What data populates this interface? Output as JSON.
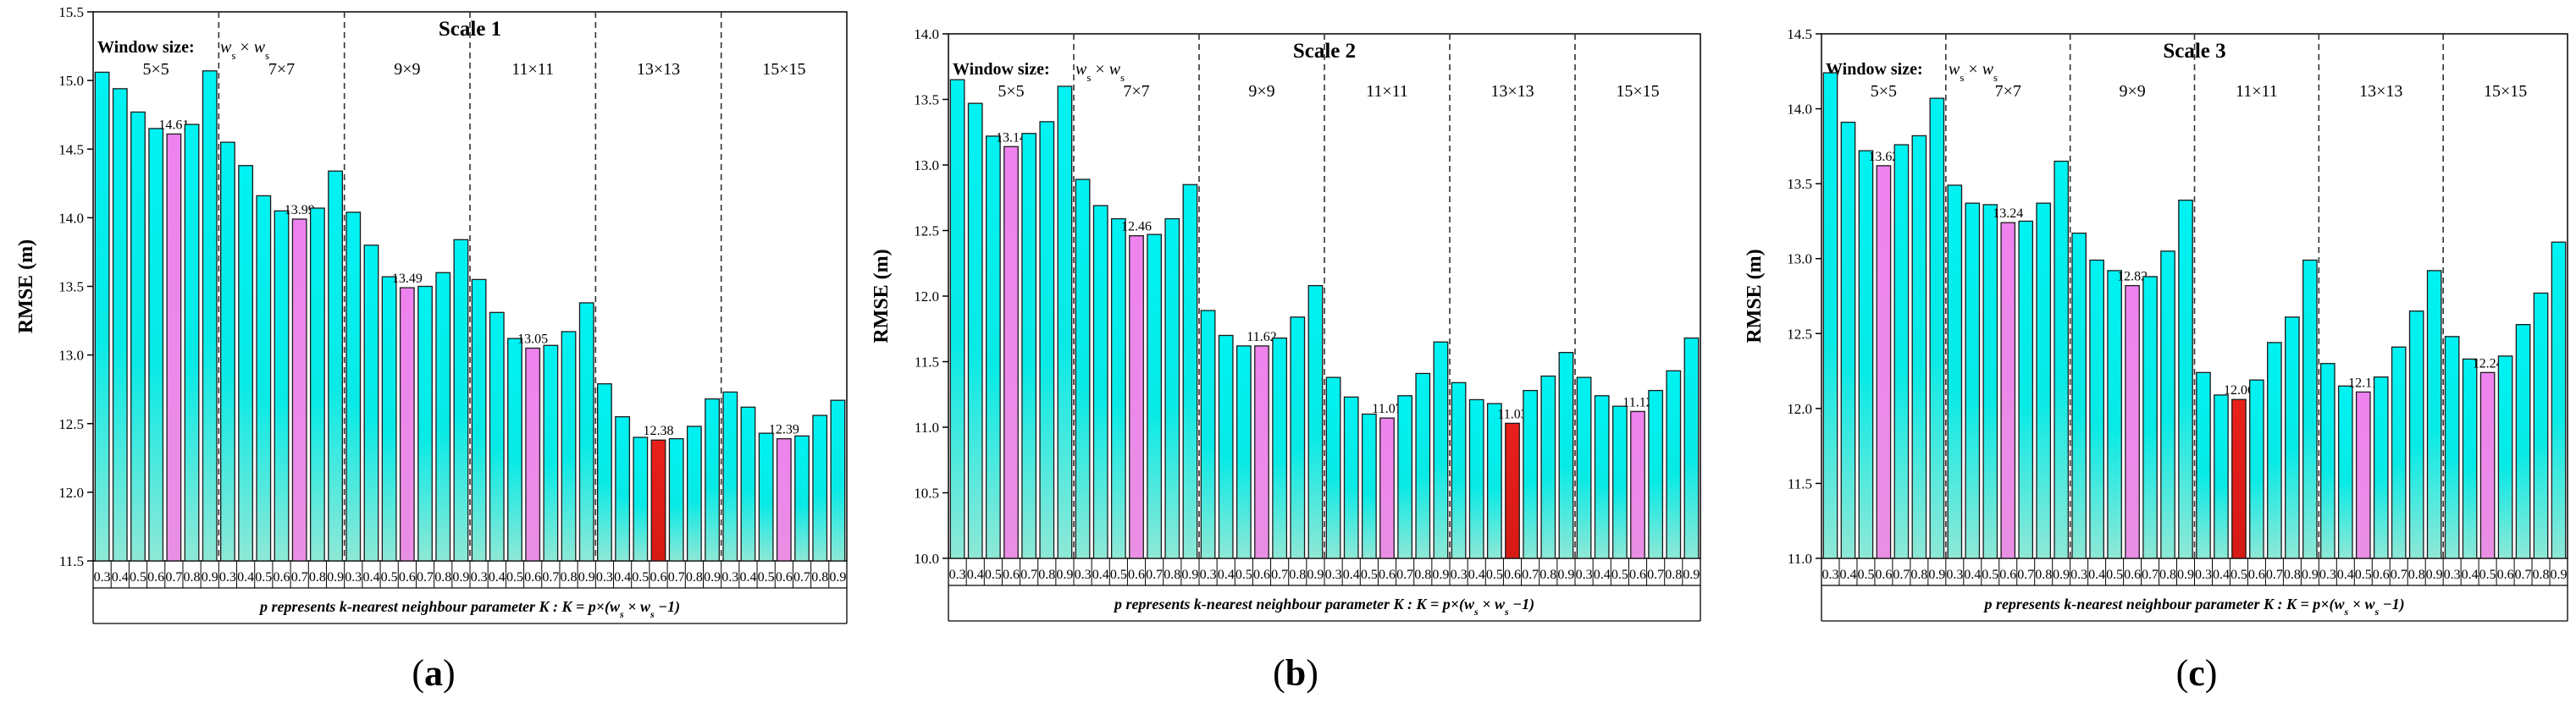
{
  "figure": {
    "colors": {
      "bar_normal": "#00F0F0",
      "bar_min_group": "#EE82EE",
      "bar_min_overall": "#E8201C",
      "bar_stroke": "#1a1a1a",
      "divider": "#333333",
      "text": "#000000"
    }
  },
  "chart_data": [
    {
      "type": "bar",
      "panel_label": "(a)",
      "title": "Scale 1",
      "ylabel": "RMSE (m)",
      "xlabel": "p represents k-nearest neighbour parameter K : K = p×(w_s × w_s − 1)",
      "xlabel_parts": [
        "p represents k-nearest neighbour parameter ",
        "K",
        " : ",
        "K",
        " = ",
        "p",
        "×(",
        "w",
        "s",
        " × ",
        "w",
        "s",
        " −1)"
      ],
      "window_label": "Window size:",
      "window_formula": [
        "w",
        "s",
        " × ",
        "w",
        "s"
      ],
      "ylim": [
        11.5,
        15.5
      ],
      "yticks": [
        "11.5",
        "12.0",
        "12.5",
        "13.0",
        "13.5",
        "14.0",
        "14.5",
        "15.0",
        "15.5"
      ],
      "yticks_values": [
        11.5,
        12.0,
        12.5,
        13.0,
        13.5,
        14.0,
        14.5,
        15.0,
        15.5
      ],
      "x_tick_labels": [
        "0.3",
        "0.4",
        "0.5",
        "0.6",
        "0.7",
        "0.8",
        "0.9"
      ],
      "groups": [
        {
          "label": "5×5",
          "values": [
            15.06,
            14.94,
            14.77,
            14.65,
            14.61,
            14.68,
            15.07
          ],
          "min_label": "14.61",
          "min_index": 4
        },
        {
          "label": "7×7",
          "values": [
            14.55,
            14.38,
            14.16,
            14.05,
            13.99,
            14.07,
            14.34
          ],
          "min_label": "13.99",
          "min_index": 4
        },
        {
          "label": "9×9",
          "values": [
            14.04,
            13.8,
            13.57,
            13.49,
            13.5,
            13.6,
            13.84
          ],
          "min_label": "13.49",
          "min_index": 3
        },
        {
          "label": "11×11",
          "values": [
            13.55,
            13.31,
            13.12,
            13.05,
            13.07,
            13.17,
            13.38
          ],
          "min_label": "13.05",
          "min_index": 3
        },
        {
          "label": "13×13",
          "values": [
            12.79,
            12.55,
            12.4,
            12.38,
            12.39,
            12.48,
            12.68
          ],
          "min_label": "12.38",
          "min_index": 3,
          "overall_min": true
        },
        {
          "label": "15×15",
          "values": [
            12.73,
            12.62,
            12.43,
            12.39,
            12.41,
            12.56,
            12.67
          ],
          "min_label": "12.39",
          "min_index": 3
        }
      ]
    },
    {
      "type": "bar",
      "panel_label": "(b)",
      "title": "Scale 2",
      "ylabel": "RMSE (m)",
      "xlabel": "p represents k-nearest neighbour parameter K : K = p×(w_s × w_s − 1)",
      "xlabel_parts": [
        "p represents k-nearest neighbour parameter ",
        "K",
        " : ",
        "K",
        " = ",
        "p",
        "×(",
        "w",
        "s",
        " × ",
        "w",
        "s",
        " −1)"
      ],
      "window_label": "Window size:",
      "window_formula": [
        "w",
        "s",
        " × ",
        "w",
        "s"
      ],
      "ylim": [
        10.0,
        14.0
      ],
      "yticks": [
        "10.0",
        "10.5",
        "11.0",
        "11.5",
        "12.0",
        "12.5",
        "13.0",
        "13.5",
        "14.0"
      ],
      "yticks_values": [
        10.0,
        10.5,
        11.0,
        11.5,
        12.0,
        12.5,
        13.0,
        13.5,
        14.0
      ],
      "x_tick_labels": [
        "0.3",
        "0.4",
        "0.5",
        "0.6",
        "0.7",
        "0.8",
        "0.9"
      ],
      "groups": [
        {
          "label": "5×5",
          "values": [
            13.65,
            13.47,
            13.22,
            13.14,
            13.24,
            13.33,
            13.6
          ],
          "min_label": "13.14",
          "min_index": 3
        },
        {
          "label": "7×7",
          "values": [
            12.89,
            12.69,
            12.59,
            12.46,
            12.47,
            12.59,
            12.85
          ],
          "min_label": "12.46",
          "min_index": 3
        },
        {
          "label": "9×9",
          "values": [
            11.89,
            11.7,
            11.62,
            11.62,
            11.68,
            11.84,
            12.08
          ],
          "min_label": "11.62",
          "min_index": 3
        },
        {
          "label": "11×11",
          "values": [
            11.38,
            11.23,
            11.1,
            11.07,
            11.24,
            11.41,
            11.65
          ],
          "min_label": "11.07",
          "min_index": 3
        },
        {
          "label": "13×13",
          "values": [
            11.34,
            11.21,
            11.18,
            11.03,
            11.28,
            11.39,
            11.57
          ],
          "min_label": "11.03",
          "min_index": 3,
          "overall_min": true
        },
        {
          "label": "15×15",
          "values": [
            11.38,
            11.24,
            11.16,
            11.12,
            11.28,
            11.43,
            11.68
          ],
          "min_label": "11.12",
          "min_index": 3
        }
      ]
    },
    {
      "type": "bar",
      "panel_label": "(c)",
      "title": "Scale 3",
      "ylabel": "RMSE (m)",
      "xlabel": "p represents k-nearest neighbour parameter K : K = p×(w_s × w_s − 1)",
      "xlabel_parts": [
        "p represents k-nearest neighbour parameter ",
        "K",
        " : ",
        "K",
        " = ",
        "p",
        "×(",
        "w",
        "s",
        " × ",
        "w",
        "s",
        " −1)"
      ],
      "window_label": "Window size:",
      "window_formula": [
        "w",
        "s",
        " × ",
        "w",
        "s"
      ],
      "ylim": [
        11.0,
        14.5
      ],
      "yticks": [
        "11.0",
        "11.5",
        "12.0",
        "12.5",
        "13.0",
        "13.5",
        "14.0",
        "14.5"
      ],
      "yticks_values": [
        11.0,
        11.5,
        12.0,
        12.5,
        13.0,
        13.5,
        14.0,
        14.5
      ],
      "x_tick_labels": [
        "0.3",
        "0.4",
        "0.5",
        "0.6",
        "0.7",
        "0.8",
        "0.9"
      ],
      "groups": [
        {
          "label": "5×5",
          "values": [
            14.24,
            13.91,
            13.72,
            13.62,
            13.76,
            13.82,
            14.07
          ],
          "min_label": "13.62",
          "min_index": 3
        },
        {
          "label": "7×7",
          "values": [
            13.49,
            13.37,
            13.36,
            13.24,
            13.25,
            13.37,
            13.65
          ],
          "min_label": "13.24",
          "min_index": 3
        },
        {
          "label": "9×9",
          "values": [
            13.17,
            12.99,
            12.92,
            12.82,
            12.88,
            13.05,
            13.39
          ],
          "min_label": "12.82",
          "min_index": 3
        },
        {
          "label": "11×11",
          "values": [
            12.24,
            12.09,
            12.06,
            12.19,
            12.44,
            12.61,
            12.99
          ],
          "min_label": "12.06",
          "min_index": 2,
          "overall_min": true
        },
        {
          "label": "13×13",
          "values": [
            12.3,
            12.15,
            12.11,
            12.21,
            12.41,
            12.65,
            12.92
          ],
          "min_label": "12.11",
          "min_index": 2
        },
        {
          "label": "15×15",
          "values": [
            12.48,
            12.33,
            12.24,
            12.35,
            12.56,
            12.77,
            13.11
          ],
          "min_label": "12.24",
          "min_index": 2
        }
      ]
    }
  ]
}
